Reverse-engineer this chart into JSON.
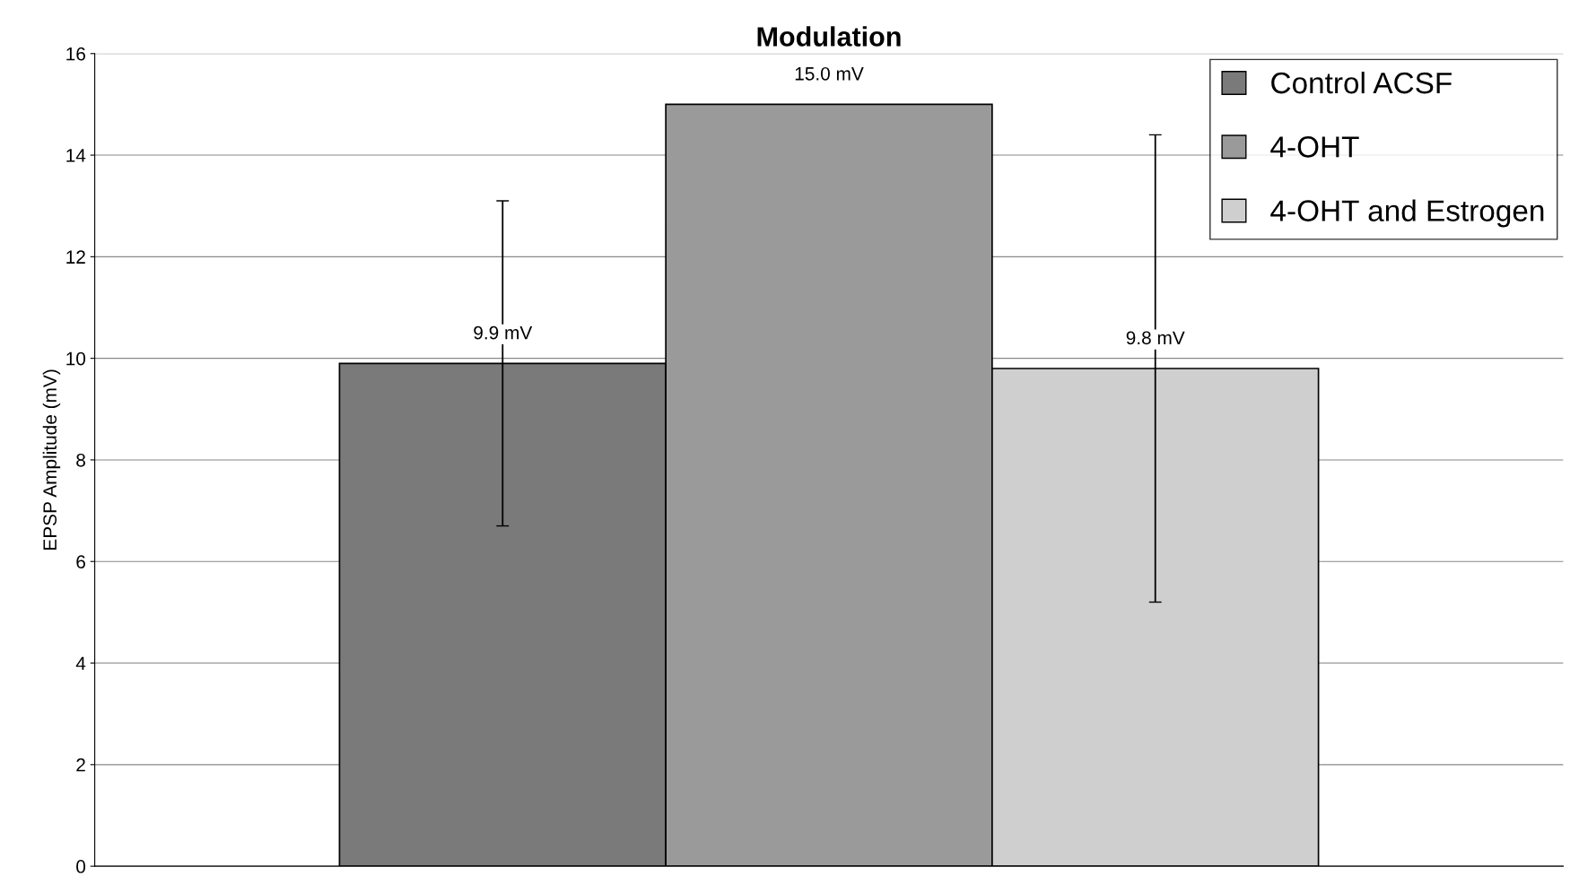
{
  "chart_data": {
    "type": "bar",
    "title": "Modulation",
    "ylabel": "EPSP Amplitude (mV)",
    "categories": [
      null
    ],
    "series": [
      {
        "name": "Control ACSF",
        "color": "#7a7a7a",
        "values": [
          9.9
        ],
        "errors": [
          3.2
        ],
        "value_labels": [
          "9.9 mV"
        ]
      },
      {
        "name": "4-OHT",
        "color": "#9a9a9a",
        "values": [
          15.0
        ],
        "value_labels": [
          "15.0 mV"
        ]
      },
      {
        "name": "4-OHT and Estrogen",
        "color": "#cfcfcf",
        "values": [
          9.8
        ],
        "errors": [
          4.6
        ],
        "value_labels": [
          "9.8 mV"
        ]
      }
    ],
    "ylim": [
      0,
      16
    ],
    "yticks": [
      0,
      2,
      4,
      6,
      8,
      10,
      12,
      14,
      16
    ],
    "grid": "y",
    "legend": "top right"
  }
}
